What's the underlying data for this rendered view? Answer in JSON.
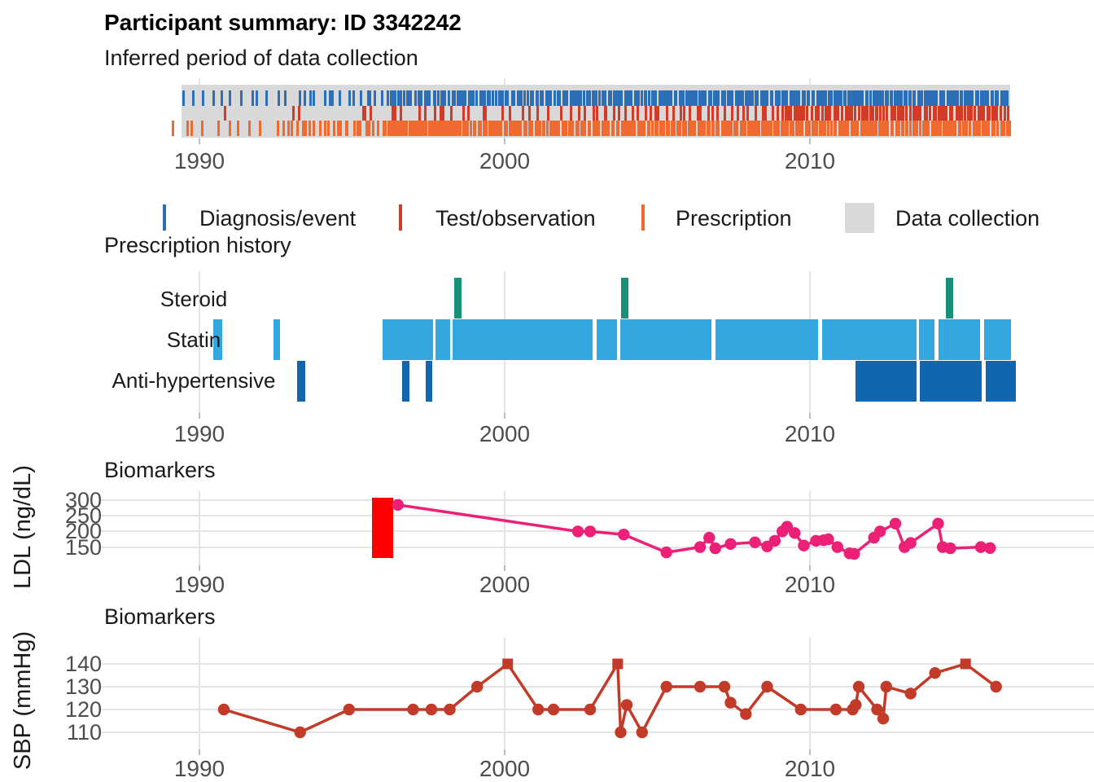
{
  "title": "Participant summary: ID 3342242",
  "colors": {
    "diagnosis": "#2a6fb8",
    "test": "#d23b27",
    "prescription": "#ef6a30",
    "collection": "#d9d9d9",
    "steroid": "#17907a",
    "statin": "#34a7de",
    "antihypertensive": "#1266ae",
    "ldl_line": "#ec2077",
    "ldl_range_bar": "#ff0000",
    "sbp_line": "#c23a28",
    "gridline": "#e4e4e4",
    "axis_text": "#4d4d4d"
  },
  "legend": {
    "items": [
      {
        "label": "Diagnosis/event",
        "glyph": "tick",
        "color_key": "diagnosis"
      },
      {
        "label": "Test/observation",
        "glyph": "tick",
        "color_key": "test"
      },
      {
        "label": "Prescription",
        "glyph": "tick",
        "color_key": "prescription"
      },
      {
        "label": "Data collection",
        "glyph": "box",
        "color_key": "collection"
      }
    ]
  },
  "chart_data": [
    {
      "id": "event_timeline",
      "type": "scatter",
      "subtype": "event-rug-timeline",
      "title": "Inferred period of data collection",
      "x_axis": {
        "ticks": [
          1990,
          2000,
          2010
        ],
        "range": [
          1988.8,
          2016.8
        ]
      },
      "collection_period": {
        "from": 1989.4,
        "to": 2016.55,
        "label": "Data collection"
      },
      "jitter_seed": 42,
      "rows": [
        {
          "label": "Diagnosis/event",
          "color_key": "diagnosis",
          "density_segments": [
            {
              "from": 1989.2,
              "to": 1993.0,
              "count": 12
            },
            {
              "from": 1993.1,
              "to": 1996.1,
              "count": 15
            },
            {
              "from": 1996.1,
              "to": 1998.35,
              "count": 26
            },
            {
              "from": 1998.4,
              "to": 2004.0,
              "count": 64
            },
            {
              "from": 2004.0,
              "to": 2010.0,
              "count": 74
            },
            {
              "from": 2010.0,
              "to": 2016.45,
              "count": 88
            }
          ]
        },
        {
          "label": "Test/observation",
          "color_key": "test",
          "density_segments": [
            {
              "from": 1990.72,
              "to": 1990.88,
              "count": 1
            },
            {
              "from": 1993.0,
              "to": 1993.3,
              "count": 2
            },
            {
              "from": 1995.25,
              "to": 1995.6,
              "count": 3
            },
            {
              "from": 1996.15,
              "to": 1996.6,
              "count": 3
            },
            {
              "from": 1997.05,
              "to": 1998.3,
              "count": 6
            },
            {
              "from": 1998.35,
              "to": 2002.5,
              "count": 13
            },
            {
              "from": 2002.5,
              "to": 2009.0,
              "count": 34
            },
            {
              "from": 2009.0,
              "to": 2016.45,
              "count": 80
            }
          ]
        },
        {
          "label": "Prescription",
          "color_key": "prescription",
          "density_segments": [
            {
              "from": 1988.95,
              "to": 1992.6,
              "count": 10
            },
            {
              "from": 1992.7,
              "to": 1996.05,
              "count": 24
            },
            {
              "from": 1996.05,
              "to": 1998.5,
              "count": 42
            },
            {
              "from": 1998.5,
              "to": 2016.5,
              "count": 230
            }
          ]
        }
      ]
    },
    {
      "id": "prescription_history",
      "type": "bar",
      "subtype": "gantt",
      "title": "Prescription history",
      "x_axis": {
        "ticks": [
          1990,
          2000,
          2010
        ],
        "range": [
          1988.8,
          2016.8
        ]
      },
      "rows": [
        {
          "label": "Steroid",
          "color_key": "steroid",
          "bars": [
            [
              1998.35,
              1998.6
            ],
            [
              2003.8,
              2004.05
            ],
            [
              2014.45,
              2014.7
            ]
          ]
        },
        {
          "label": "Statin",
          "color_key": "statin",
          "bars": [
            [
              1990.45,
              1990.75
            ],
            [
              1992.43,
              1992.65
            ],
            [
              1996.0,
              1997.65
            ],
            [
              1997.72,
              1998.2
            ],
            [
              1998.3,
              2002.88
            ],
            [
              2003.0,
              2003.68
            ],
            [
              2003.78,
              2006.78
            ],
            [
              2006.9,
              2010.28
            ],
            [
              2010.4,
              2013.48
            ],
            [
              2013.58,
              2014.08
            ],
            [
              2014.2,
              2015.58
            ],
            [
              2015.7,
              2016.6
            ]
          ]
        },
        {
          "label": "Anti-hypertensive",
          "color_key": "antihypertensive",
          "bars": [
            [
              1993.2,
              1993.47
            ],
            [
              1996.64,
              1996.88
            ],
            [
              1997.4,
              1997.62
            ],
            [
              2011.5,
              2013.48
            ],
            [
              2013.6,
              2015.63
            ],
            [
              2015.76,
              2016.75
            ]
          ]
        }
      ]
    },
    {
      "id": "ldl",
      "type": "line",
      "title": "Biomarkers",
      "ylabel": "LDL (ng/dL)",
      "x_axis": {
        "ticks": [
          1990,
          2000,
          2010
        ],
        "range": [
          1986.8,
          2019.3
        ]
      },
      "y_axis": {
        "ticks": [
          300,
          250,
          200,
          150
        ],
        "ylim": [
          108,
          315
        ]
      },
      "color_key": "ldl_line",
      "uncertainty_bar": {
        "year_from": 1995.66,
        "year_to": 1996.36,
        "value_low": 115,
        "value_high": 308,
        "color_key": "ldl_range_bar"
      },
      "points": [
        [
          1996.5,
          285
        ],
        [
          2002.4,
          200
        ],
        [
          2002.8,
          200
        ],
        [
          2003.9,
          190
        ],
        [
          2005.3,
          133
        ],
        [
          2006.4,
          150
        ],
        [
          2006.7,
          180
        ],
        [
          2006.9,
          146
        ],
        [
          2007.4,
          160
        ],
        [
          2008.2,
          165
        ],
        [
          2008.6,
          152
        ],
        [
          2008.85,
          170
        ],
        [
          2009.1,
          200
        ],
        [
          2009.25,
          215
        ],
        [
          2009.5,
          195
        ],
        [
          2009.8,
          155
        ],
        [
          2010.2,
          170
        ],
        [
          2010.45,
          172
        ],
        [
          2010.6,
          175
        ],
        [
          2010.9,
          150
        ],
        [
          2011.3,
          130
        ],
        [
          2011.45,
          128
        ],
        [
          2012.1,
          180
        ],
        [
          2012.3,
          200
        ],
        [
          2012.8,
          225
        ],
        [
          2013.1,
          150
        ],
        [
          2013.3,
          163
        ],
        [
          2014.2,
          225
        ],
        [
          2014.35,
          150
        ],
        [
          2014.6,
          146
        ],
        [
          2015.6,
          150
        ],
        [
          2015.9,
          147
        ]
      ]
    },
    {
      "id": "sbp",
      "type": "line",
      "title": "Biomarkers",
      "ylabel": "SBP (mmHg)",
      "x_axis": {
        "ticks": [
          1990,
          2000,
          2010
        ],
        "range": [
          1986.8,
          2019.3
        ]
      },
      "y_axis": {
        "ticks": [
          140,
          130,
          120,
          110
        ],
        "ylim": [
          105,
          145
        ]
      },
      "color_key": "sbp_line",
      "square_marker_at_or_above": 140,
      "points": [
        [
          1990.8,
          120
        ],
        [
          1993.3,
          110
        ],
        [
          1994.9,
          120
        ],
        [
          1997.0,
          120
        ],
        [
          1997.6,
          120
        ],
        [
          1998.2,
          120
        ],
        [
          1999.1,
          130
        ],
        [
          2000.1,
          140
        ],
        [
          2001.1,
          120
        ],
        [
          2001.6,
          120
        ],
        [
          2002.8,
          120
        ],
        [
          2003.7,
          140
        ],
        [
          2003.8,
          110
        ],
        [
          2004.0,
          122
        ],
        [
          2004.5,
          110
        ],
        [
          2005.3,
          130
        ],
        [
          2006.4,
          130
        ],
        [
          2007.2,
          130
        ],
        [
          2007.4,
          123
        ],
        [
          2007.9,
          118
        ],
        [
          2008.6,
          130
        ],
        [
          2009.7,
          120
        ],
        [
          2010.85,
          120
        ],
        [
          2011.4,
          120
        ],
        [
          2011.5,
          122
        ],
        [
          2011.6,
          130
        ],
        [
          2012.2,
          120
        ],
        [
          2012.4,
          116
        ],
        [
          2012.5,
          130
        ],
        [
          2013.3,
          127
        ],
        [
          2014.1,
          136
        ],
        [
          2015.1,
          140
        ],
        [
          2016.1,
          130
        ]
      ]
    }
  ]
}
